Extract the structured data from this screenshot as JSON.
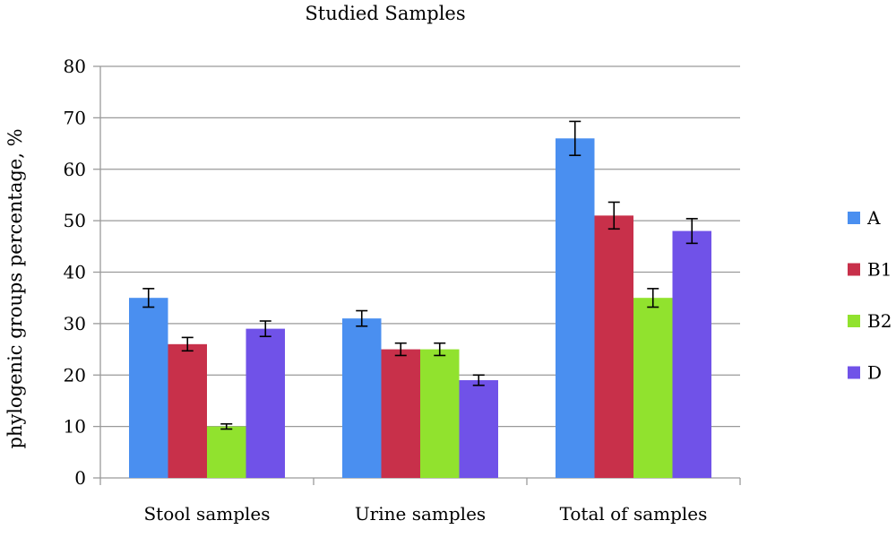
{
  "chart_data": {
    "type": "bar",
    "title": "Studied Samples",
    "ylabel": "phylogenic groups percentage, %",
    "xlabel": "",
    "ylim": [
      0,
      80
    ],
    "yticks": [
      0,
      10,
      20,
      30,
      40,
      50,
      60,
      70,
      80
    ],
    "grid": true,
    "legend_position": "right",
    "categories": [
      "Stool samples",
      "Urine samples",
      "Total of samples"
    ],
    "series": [
      {
        "name": "A",
        "color": "#4a8ff0",
        "values": [
          35,
          31,
          66
        ],
        "errors": [
          1.8,
          1.5,
          3.3
        ]
      },
      {
        "name": "B1",
        "color": "#c8304a",
        "values": [
          26,
          25,
          51
        ],
        "errors": [
          1.3,
          1.2,
          2.6
        ]
      },
      {
        "name": "B2",
        "color": "#91e22e",
        "values": [
          10,
          25,
          35
        ],
        "errors": [
          0.5,
          1.2,
          1.8
        ]
      },
      {
        "name": "D",
        "color": "#7052e8",
        "values": [
          29,
          19,
          48
        ],
        "errors": [
          1.5,
          1.0,
          2.4
        ]
      }
    ]
  }
}
